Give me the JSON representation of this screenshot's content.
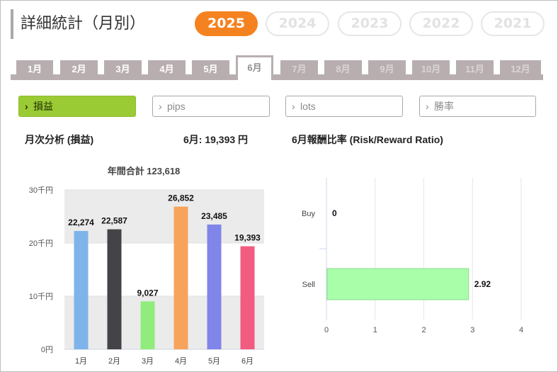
{
  "title": "詳細統計（月別）",
  "years": [
    {
      "label": "2025",
      "active": true
    },
    {
      "label": "2024",
      "active": false
    },
    {
      "label": "2023",
      "active": false
    },
    {
      "label": "2022",
      "active": false
    },
    {
      "label": "2021",
      "active": false
    }
  ],
  "months": [
    {
      "label": "1月",
      "state": "normal"
    },
    {
      "label": "2月",
      "state": "normal"
    },
    {
      "label": "3月",
      "state": "normal"
    },
    {
      "label": "4月",
      "state": "normal"
    },
    {
      "label": "5月",
      "state": "normal"
    },
    {
      "label": "6月",
      "state": "active"
    },
    {
      "label": "7月",
      "state": "dim"
    },
    {
      "label": "8月",
      "state": "dim"
    },
    {
      "label": "9月",
      "state": "dim"
    },
    {
      "label": "10月",
      "state": "dim"
    },
    {
      "label": "11月",
      "state": "dim"
    },
    {
      "label": "12月",
      "state": "dim"
    }
  ],
  "metrics": [
    {
      "label": "損益",
      "active": true
    },
    {
      "label": "pips",
      "active": false
    },
    {
      "label": "lots",
      "active": false
    },
    {
      "label": "勝率",
      "active": false
    }
  ],
  "left_panel": {
    "heading": "月次分析 (損益)",
    "month_summary": "6月:  19,393 円",
    "annual_total": "年間合計 123,618"
  },
  "right_panel": {
    "heading": "6月報酬比率 (Risk/Reward Ratio)"
  },
  "colors": {
    "accent": "#f58220",
    "metric_active": "#9acb35",
    "tab": "#b8aeb0"
  },
  "chart_data": [
    {
      "type": "bar",
      "categories": [
        "1月",
        "2月",
        "3月",
        "4月",
        "5月",
        "6月"
      ],
      "values": [
        22274,
        22587,
        9027,
        26852,
        23485,
        19393
      ],
      "value_labels": [
        "22,274",
        "22,587",
        "9,027",
        "26,852",
        "23,485",
        "19,393"
      ],
      "colors": [
        "#7eb4e9",
        "#434348",
        "#90ed7d",
        "#f7a35c",
        "#8085e9",
        "#f15c80"
      ],
      "ylim": [
        0,
        30000
      ],
      "ytick_values": [
        0,
        10000,
        20000,
        30000
      ],
      "ytick_labels": [
        "0円",
        "10千円",
        "20千円",
        "30千円"
      ],
      "title": "年間合計 123,618",
      "grid": true
    },
    {
      "type": "bar",
      "orientation": "horizontal",
      "categories": [
        "Buy",
        "Sell"
      ],
      "values": [
        0,
        2.92
      ],
      "value_labels": [
        "0",
        "2.92"
      ],
      "bar_color": "#a9ffa9",
      "xlim": [
        0,
        4
      ],
      "xtick_labels": [
        "0",
        "1",
        "2",
        "3",
        "4"
      ],
      "grid": true
    }
  ]
}
